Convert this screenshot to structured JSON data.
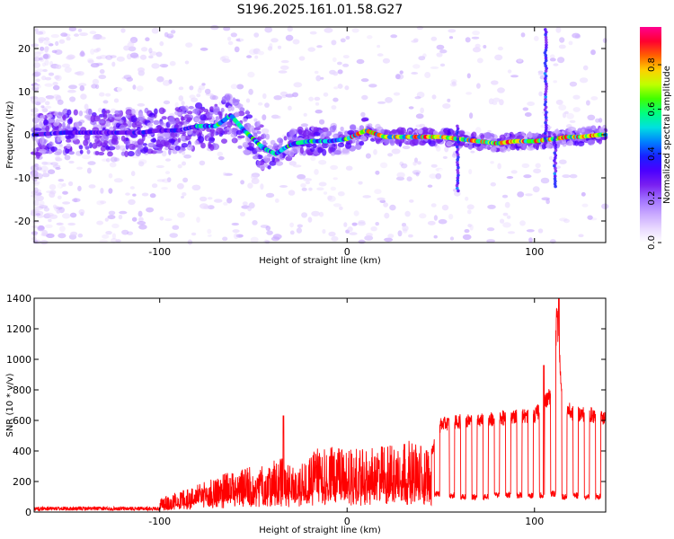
{
  "title": "S196.2025.161.01.58.G27",
  "colorbar": {
    "label": "Normalized spectral amplitude",
    "ticks": [
      0.0,
      0.2,
      0.4,
      0.6,
      0.8
    ],
    "tick_labels": [
      "0.0",
      "0.2",
      "0.4",
      "0.6",
      "0.8"
    ],
    "range": [
      0,
      0.97
    ],
    "colormap": [
      "#ffffff",
      "#e8d8ff",
      "#c8a8ff",
      "#a070ff",
      "#7a20f0",
      "#4b00ff",
      "#1820ff",
      "#0080ff",
      "#00e0e0",
      "#00ff80",
      "#40ff00",
      "#c0ff00",
      "#ffd000",
      "#ff6000",
      "#ff0030",
      "#ff0090"
    ]
  },
  "chart_data": [
    {
      "type": "heatmap",
      "name": "spectrogram",
      "xlabel": "Height of straight line (km)",
      "ylabel": "Frequency (Hz)",
      "xlim": [
        -167,
        138
      ],
      "ylim": [
        -25,
        25
      ],
      "xticks": [
        -100,
        0,
        100
      ],
      "xtick_labels": [
        "-100",
        "0",
        "100"
      ],
      "yticks": [
        -20,
        -10,
        0,
        10,
        20
      ],
      "ytick_labels": [
        "-20",
        "-10",
        "0",
        "10",
        "20"
      ],
      "ridge": {
        "description_free": true,
        "x": [
          -167,
          -150,
          -130,
          -110,
          -100,
          -90,
          -80,
          -70,
          -62,
          -55,
          -45,
          -38,
          -33,
          -28,
          -20,
          -10,
          0,
          5,
          10,
          20,
          30,
          40,
          50,
          60,
          70,
          80,
          90,
          100,
          110,
          118,
          125,
          135
        ],
        "y": [
          0,
          0.5,
          0.5,
          0.5,
          1,
          1,
          2,
          2,
          4.5,
          1,
          -3,
          -4.5,
          -3,
          -2,
          -1.5,
          -1.5,
          -1,
          0,
          1,
          -0.5,
          -0.5,
          -0.5,
          -0.5,
          -1,
          -1.5,
          -2,
          -1.5,
          -1.5,
          -1,
          -0.5,
          -0.5,
          0
        ]
      },
      "vertical_features": [
        {
          "x": 59,
          "y_range": [
            -13,
            2
          ]
        },
        {
          "x": 106,
          "y_range": [
            -2,
            25
          ]
        },
        {
          "x": 111,
          "y_range": [
            -12,
            0
          ]
        }
      ]
    },
    {
      "type": "line",
      "name": "snr",
      "xlabel": "Height of straight line (km)",
      "ylabel": "SNR (10 * v/v)",
      "xlim": [
        -167,
        138
      ],
      "ylim": [
        0,
        1400
      ],
      "xticks": [
        -100,
        0,
        100
      ],
      "xtick_labels": [
        "-100",
        "0",
        "100"
      ],
      "yticks": [
        0,
        200,
        400,
        600,
        800,
        1000,
        1200,
        1400
      ],
      "ytick_labels": [
        "0",
        "200",
        "400",
        "600",
        "800",
        "1000",
        "1200",
        "1400"
      ],
      "color": "#ff0000",
      "envelope": {
        "x": [
          -167,
          -140,
          -110,
          -100,
          -90,
          -80,
          -70,
          -60,
          -50,
          -42,
          -35,
          -30,
          -20,
          -10,
          0,
          10,
          20,
          30,
          40,
          45,
          50,
          60,
          70,
          80,
          90,
          100,
          105,
          110,
          112,
          115,
          120,
          130,
          138
        ],
        "y": [
          30,
          30,
          40,
          90,
          140,
          180,
          230,
          280,
          300,
          320,
          360,
          300,
          400,
          440,
          420,
          410,
          440,
          480,
          450,
          420,
          620,
          640,
          650,
          660,
          680,
          680,
          760,
          860,
          1400,
          760,
          700,
          690,
          660
        ]
      },
      "dips": [
        {
          "x": 48,
          "y": 100
        },
        {
          "x": 56,
          "y": 90
        },
        {
          "x": 62,
          "y": 80
        },
        {
          "x": 68,
          "y": 80
        },
        {
          "x": 74,
          "y": 80
        },
        {
          "x": 80,
          "y": 90
        },
        {
          "x": 86,
          "y": 90
        },
        {
          "x": 92,
          "y": 90
        },
        {
          "x": 98,
          "y": 90
        },
        {
          "x": 104,
          "y": 90
        },
        {
          "x": 110,
          "y": 100
        },
        {
          "x": 116,
          "y": 80
        },
        {
          "x": 122,
          "y": 90
        },
        {
          "x": 128,
          "y": 80
        },
        {
          "x": 134,
          "y": 80
        }
      ],
      "spikes": [
        {
          "x": -34,
          "y": 630
        },
        {
          "x": 105,
          "y": 960
        },
        {
          "x": 113,
          "y": 1400
        }
      ]
    }
  ]
}
